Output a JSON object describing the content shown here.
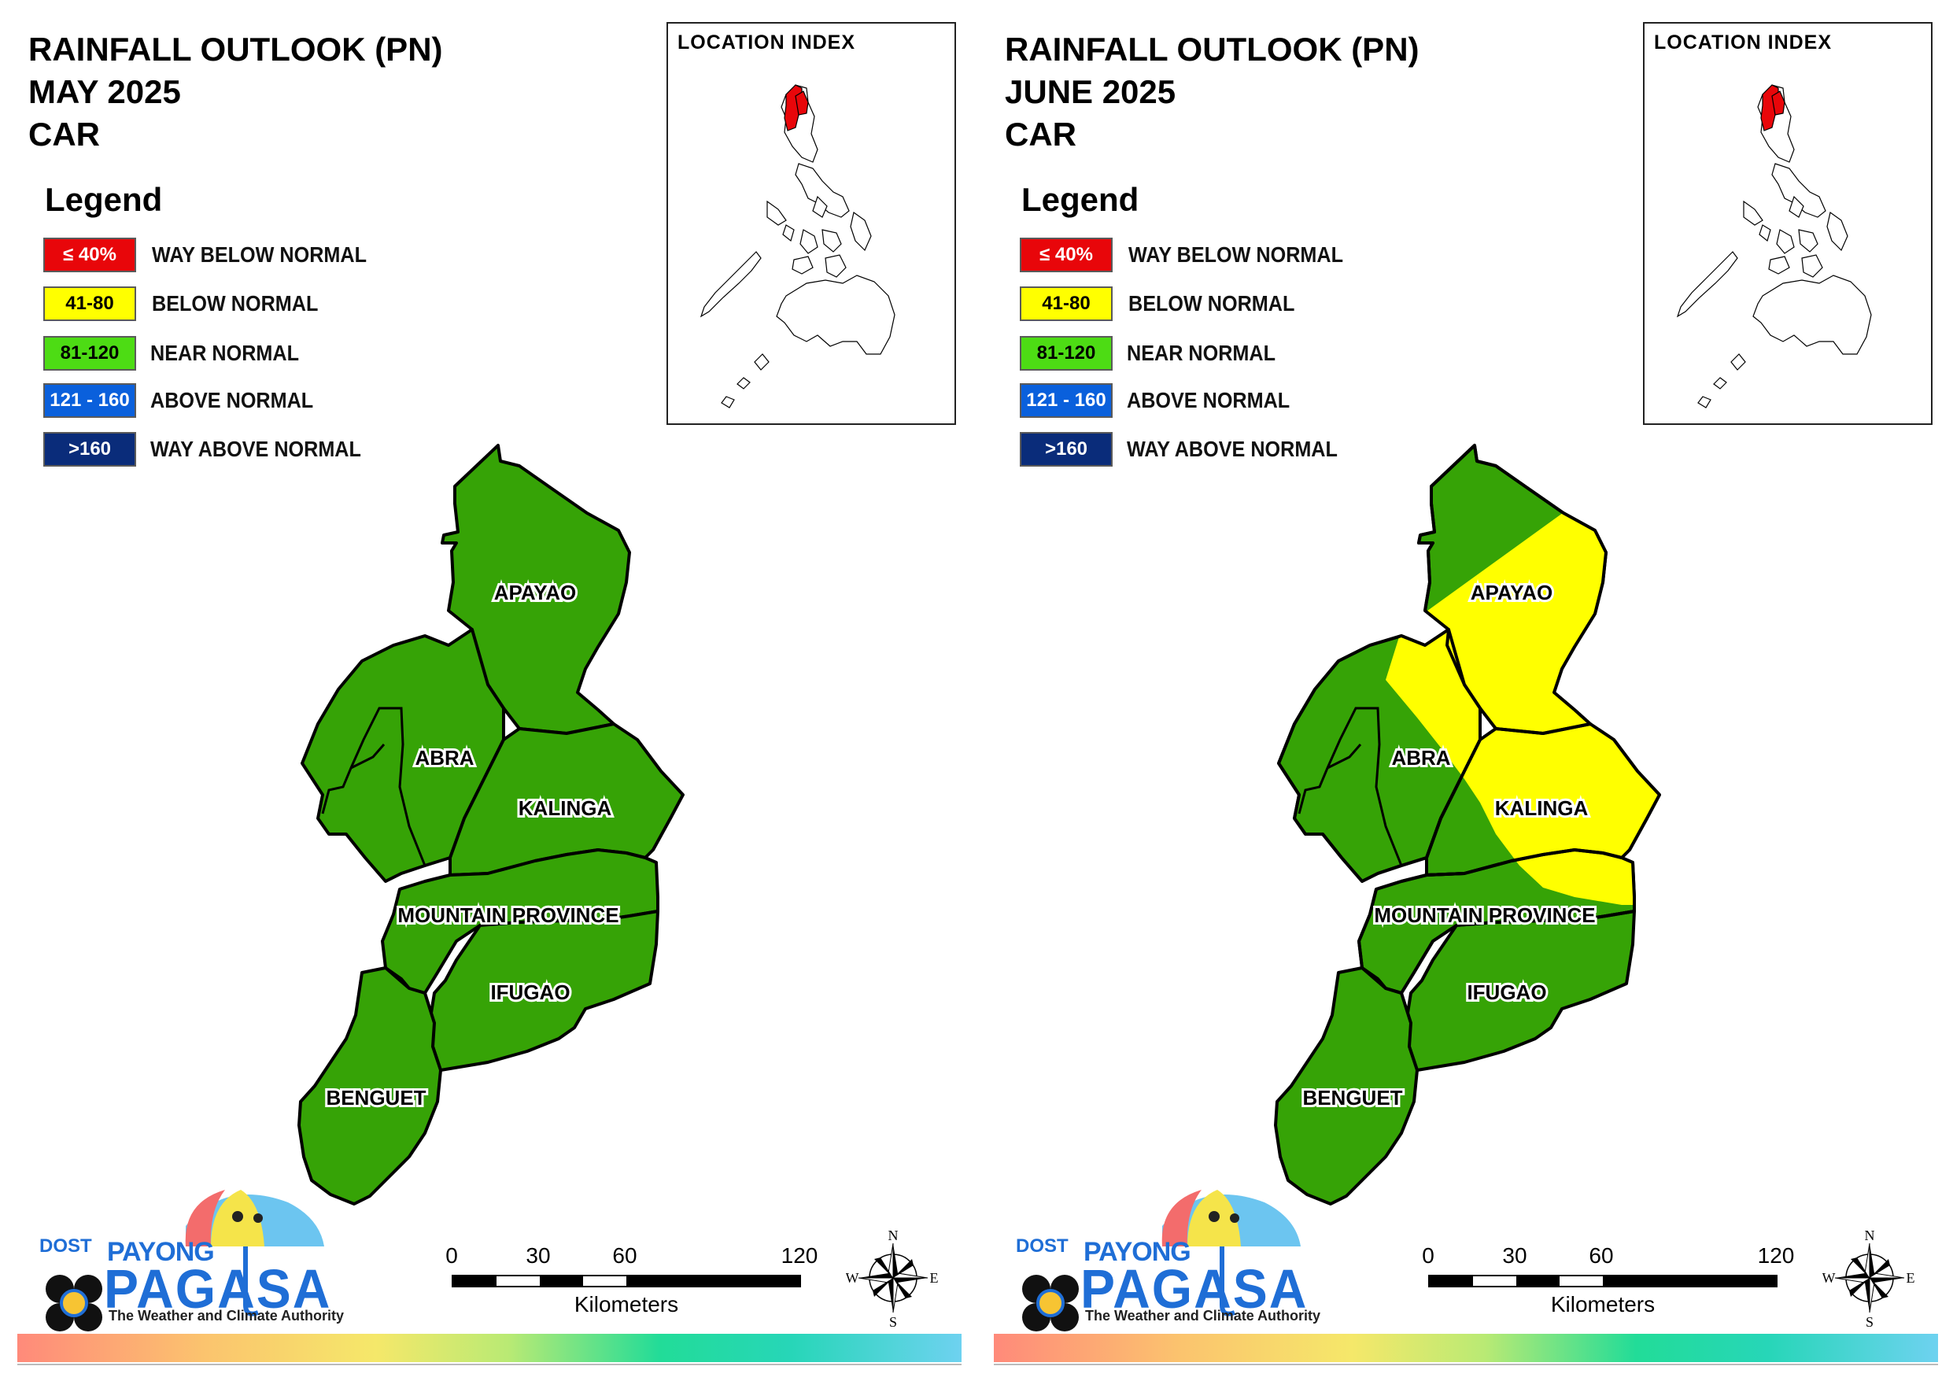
{
  "colors": {
    "way_below": "#e8060a",
    "below": "#ffff00",
    "near": "#36a306",
    "near_legend": "#4ddc14",
    "above": "#0a60dc",
    "way_above": "#0a2c7a",
    "border": "#000000"
  },
  "legend": {
    "title": "Legend",
    "items": [
      {
        "range": "≤ 40%",
        "label": "WAY BELOW NORMAL",
        "color": "#e8060a",
        "text_color": "#ffffff"
      },
      {
        "range": "41-80",
        "label": "BELOW NORMAL",
        "color": "#ffff00",
        "text_color": "#000000"
      },
      {
        "range": "81-120",
        "label": "NEAR NORMAL",
        "color": "#4ddc14",
        "text_color": "#000000"
      },
      {
        "range": "121 - 160",
        "label": "ABOVE NORMAL",
        "color": "#0a60dc",
        "text_color": "#ffffff"
      },
      {
        "range": ">160",
        "label": "WAY ABOVE NORMAL",
        "color": "#0a2c7a",
        "text_color": "#ffffff"
      }
    ]
  },
  "inset": {
    "title": "LOCATION INDEX"
  },
  "provinces": {
    "apayao": "APAYAO",
    "abra": "ABRA",
    "kalinga": "KALINGA",
    "mountain_province": "MOUNTAIN PROVINCE",
    "ifugao": "IFUGAO",
    "benguet": "BENGUET"
  },
  "maps": [
    {
      "title_line1": "RAINFALL OUTLOOK (PN)",
      "title_line2": "MAY 2025",
      "title_line3": "CAR",
      "province_category": {
        "APAYAO": "NEAR NORMAL",
        "ABRA": "NEAR NORMAL",
        "KALINGA": "NEAR NORMAL",
        "MOUNTAIN PROVINCE": "NEAR NORMAL",
        "IFUGAO": "NEAR NORMAL",
        "BENGUET": "NEAR NORMAL"
      }
    },
    {
      "title_line1": "RAINFALL OUTLOOK (PN)",
      "title_line2": "JUNE 2025",
      "title_line3": "CAR",
      "province_category": {
        "APAYAO": "BELOW NORMAL",
        "ABRA": "BELOW NORMAL (east) / NEAR NORMAL (west)",
        "KALINGA": "BELOW NORMAL (northeast) / NEAR NORMAL (southwest)",
        "MOUNTAIN PROVINCE": "BELOW NORMAL (north edge) / NEAR NORMAL",
        "IFUGAO": "NEAR NORMAL",
        "BENGUET": "NEAR NORMAL"
      }
    }
  ],
  "scale": {
    "ticks": [
      "0",
      "30",
      "60",
      "120"
    ],
    "unit": "Kilometers"
  },
  "compass": {
    "n": "N",
    "s": "S",
    "e": "E",
    "w": "W"
  },
  "logo": {
    "dost": "DOST",
    "payong": "PAYONG",
    "pagasa": "PAGASA",
    "tagline": "The Weather and Climate Authority"
  }
}
